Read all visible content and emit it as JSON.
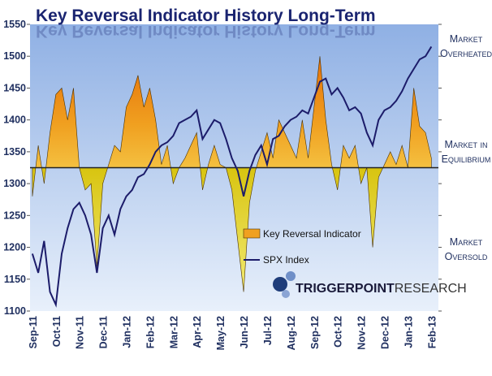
{
  "chart_data": {
    "type": "line",
    "title": "Key Reversal Indicator History Long-Term",
    "x": [
      0,
      0.25,
      0.5,
      0.75,
      1,
      1.25,
      1.5,
      1.75,
      2,
      2.25,
      2.5,
      2.75,
      3,
      3.25,
      3.5,
      3.75,
      4,
      4.25,
      4.5,
      4.75,
      5,
      5.25,
      5.5,
      5.75,
      6,
      6.25,
      6.5,
      6.75,
      7,
      7.25,
      7.5,
      7.75,
      8,
      8.25,
      8.5,
      8.75,
      9,
      9.25,
      9.5,
      9.75,
      10,
      10.25,
      10.5,
      10.75,
      11,
      11.25,
      11.5,
      11.75,
      12,
      12.25,
      12.5,
      12.75,
      13,
      13.25,
      13.5,
      13.75,
      14,
      14.25,
      14.5,
      14.75,
      15,
      15.25,
      15.5,
      15.75,
      16,
      16.25,
      16.5,
      16.75,
      17
    ],
    "series": [
      {
        "name": "Key Reversal Indicator",
        "type": "area",
        "color": "#f0a020",
        "negative_color": "#d8c410",
        "baseline": 1325,
        "values": [
          1280,
          1360,
          1300,
          1380,
          1440,
          1450,
          1400,
          1450,
          1325,
          1290,
          1300,
          1170,
          1300,
          1330,
          1360,
          1350,
          1420,
          1440,
          1470,
          1420,
          1450,
          1400,
          1330,
          1360,
          1300,
          1325,
          1340,
          1360,
          1380,
          1290,
          1330,
          1360,
          1330,
          1325,
          1290,
          1210,
          1130,
          1270,
          1320,
          1350,
          1380,
          1340,
          1400,
          1380,
          1360,
          1340,
          1400,
          1340,
          1420,
          1500,
          1400,
          1330,
          1290,
          1360,
          1340,
          1360,
          1300,
          1325,
          1200,
          1310,
          1330,
          1350,
          1330,
          1360,
          1325,
          1450,
          1390,
          1380,
          1340
        ]
      },
      {
        "name": "SPX Index",
        "type": "line",
        "color": "#1c1c6a",
        "values": [
          1190,
          1160,
          1210,
          1130,
          1110,
          1190,
          1230,
          1260,
          1270,
          1250,
          1220,
          1160,
          1230,
          1250,
          1220,
          1260,
          1280,
          1290,
          1310,
          1315,
          1330,
          1350,
          1360,
          1365,
          1375,
          1395,
          1400,
          1405,
          1415,
          1370,
          1385,
          1400,
          1395,
          1370,
          1340,
          1320,
          1280,
          1320,
          1345,
          1360,
          1330,
          1370,
          1375,
          1390,
          1400,
          1405,
          1415,
          1410,
          1435,
          1460,
          1465,
          1440,
          1450,
          1435,
          1415,
          1420,
          1410,
          1380,
          1360,
          1400,
          1415,
          1420,
          1430,
          1445,
          1465,
          1480,
          1495,
          1500,
          1515
        ]
      }
    ],
    "xlim": [
      -0.1,
      17.3
    ],
    "xticks": [
      {
        "value": 0,
        "label": "Sep-11"
      },
      {
        "value": 1,
        "label": "Oct-11"
      },
      {
        "value": 2,
        "label": "Nov-11"
      },
      {
        "value": 3,
        "label": "Dec-11"
      },
      {
        "value": 4,
        "label": "Jan-12"
      },
      {
        "value": 5,
        "label": "Feb-12"
      },
      {
        "value": 6,
        "label": "Mar-12"
      },
      {
        "value": 7,
        "label": "Apr-12"
      },
      {
        "value": 8,
        "label": "May-12"
      },
      {
        "value": 9,
        "label": "Jun-12"
      },
      {
        "value": 10,
        "label": "Jul-12"
      },
      {
        "value": 11,
        "label": "Aug-12"
      },
      {
        "value": 12,
        "label": "Sep-12"
      },
      {
        "value": 13,
        "label": "Oct-12"
      },
      {
        "value": 14,
        "label": "Nov-12"
      },
      {
        "value": 15,
        "label": "Dec-12"
      },
      {
        "value": 16,
        "label": "Jan-13"
      },
      {
        "value": 17,
        "label": "Feb-13"
      }
    ],
    "ylim": [
      1100,
      1550
    ],
    "yticks": [
      1100,
      1150,
      1200,
      1250,
      1300,
      1350,
      1400,
      1450,
      1500,
      1550
    ],
    "annotations": [
      {
        "text": [
          "Market",
          "Overheated"
        ]
      },
      {
        "text": [
          "Market in",
          "Equilibrium"
        ]
      },
      {
        "text": [
          "Market",
          "Oversold"
        ]
      }
    ],
    "logo": [
      "TRIGGERPOINT",
      "RESEARCH"
    ]
  }
}
